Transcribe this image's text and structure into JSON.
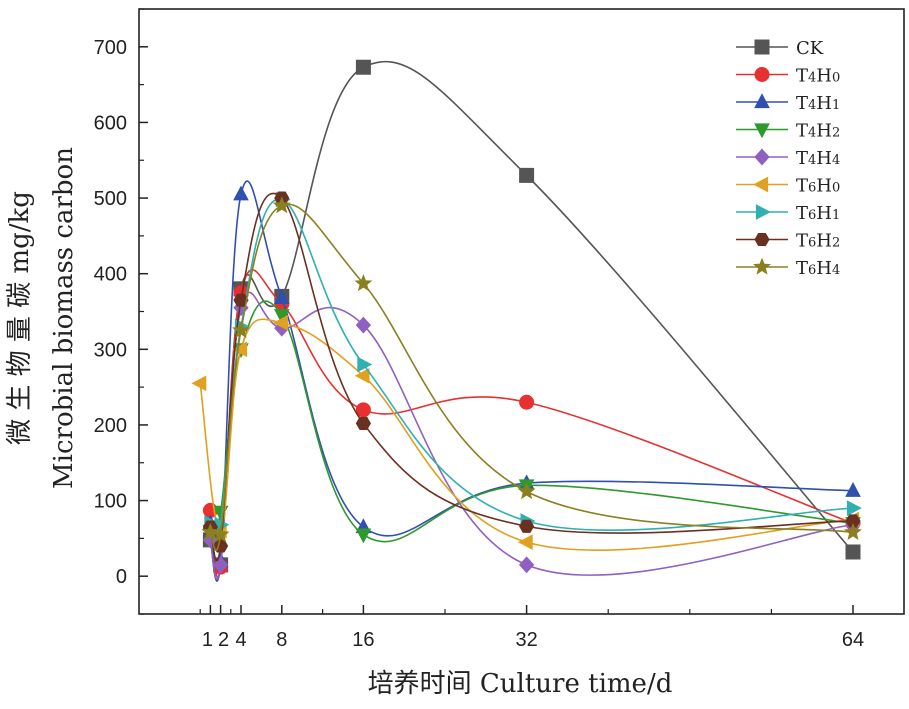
{
  "chart_data": {
    "type": "line",
    "xlabel": "培养时间 Culture time/d",
    "ylabel_cn": "微 生 物 量 碳 mg/kg",
    "ylabel_en": "Microbial biomass carbon",
    "xlim": [
      -6,
      69
    ],
    "ylim": [
      -50,
      750
    ],
    "x_ticks": [
      1,
      2,
      4,
      8,
      16,
      32,
      64
    ],
    "x_tick_labels": [
      "1",
      "2",
      "4",
      "8",
      "16",
      "32",
      "64"
    ],
    "y_ticks": [
      0,
      100,
      200,
      300,
      400,
      500,
      600,
      700
    ],
    "y_tick_labels": [
      "0",
      "100",
      "200",
      "300",
      "400",
      "500",
      "600",
      "700"
    ],
    "legend_position": "top-right",
    "grid": false,
    "x": [
      0,
      1,
      2,
      4,
      8,
      16,
      32,
      64
    ],
    "series": [
      {
        "name": "CK",
        "sub": "",
        "sub2": "",
        "color": "#555555",
        "marker": "square",
        "x": [
          1,
          2,
          4,
          8,
          16,
          32,
          64
        ],
        "values": [
          48,
          15,
          380,
          370,
          673,
          530,
          32
        ]
      },
      {
        "name": "T",
        "sub": "4",
        "mid": "H",
        "sub2": "0",
        "color": "#e83030",
        "marker": "circle",
        "x": [
          1,
          2,
          4,
          8,
          16,
          32,
          64
        ],
        "values": [
          87,
          12,
          375,
          360,
          220,
          230,
          70
        ]
      },
      {
        "name": "T",
        "sub": "4",
        "mid": "H",
        "sub2": "1",
        "color": "#3050b0",
        "marker": "triangle-up",
        "x": [
          1,
          2,
          4,
          8,
          16,
          32,
          64
        ],
        "values": [
          70,
          20,
          505,
          368,
          65,
          123,
          113
        ]
      },
      {
        "name": "T",
        "sub": "4",
        "mid": "H",
        "sub2": "2",
        "color": "#2e9a2e",
        "marker": "triangle-down",
        "x": [
          1,
          2,
          4,
          8,
          16,
          32,
          64
        ],
        "values": [
          60,
          85,
          300,
          345,
          55,
          120,
          70
        ]
      },
      {
        "name": "T",
        "sub": "4",
        "mid": "H",
        "sub2": "4",
        "color": "#9060c0",
        "marker": "diamond",
        "x": [
          1,
          2,
          4,
          8,
          16,
          32,
          64
        ],
        "values": [
          48,
          15,
          355,
          328,
          332,
          15,
          68
        ]
      },
      {
        "name": "T",
        "sub": "6",
        "mid": "H",
        "sub2": "0",
        "color": "#e0a020",
        "marker": "triangle-left",
        "x": [
          0,
          2,
          4,
          8,
          16,
          32,
          64
        ],
        "values": [
          255,
          60,
          300,
          335,
          265,
          45,
          75
        ]
      },
      {
        "name": "T",
        "sub": "6",
        "mid": "H",
        "sub2": "1",
        "color": "#30b0b0",
        "marker": "triangle-right",
        "x": [
          1,
          2,
          4,
          8,
          16,
          32,
          64
        ],
        "values": [
          70,
          68,
          330,
          498,
          280,
          73,
          90
        ]
      },
      {
        "name": "T",
        "sub": "6",
        "mid": "H",
        "sub2": "2",
        "color": "#6a3020",
        "marker": "hexagon",
        "x": [
          1,
          2,
          4,
          8,
          16,
          32,
          64
        ],
        "values": [
          65,
          40,
          365,
          500,
          202,
          66,
          73
        ]
      },
      {
        "name": "T",
        "sub": "6",
        "mid": "H",
        "sub2": "4",
        "color": "#8a8020",
        "marker": "star",
        "x": [
          1,
          2,
          4,
          8,
          16,
          32,
          64
        ],
        "values": [
          58,
          55,
          325,
          490,
          387,
          112,
          58
        ]
      }
    ]
  }
}
